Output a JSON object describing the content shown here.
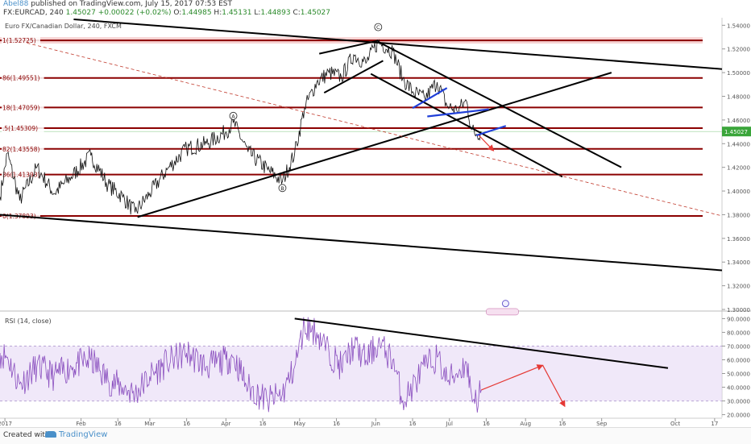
{
  "header": {
    "user": "Abel88",
    "published": " published on TradingView.com, July 15, 2017 07:53 EST",
    "symbol": "FX:EURCAD, 240",
    "price": "1.45027",
    "change": "+0.00022 (+0.02%)",
    "o_label": "O:",
    "o_val": "1.44985",
    "h_label": "H:",
    "h_val": "1.45131",
    "l_label": "L:",
    "l_val": "1.44893",
    "c_label": "C:",
    "c_val": "1.45027"
  },
  "footer": {
    "created_with": "Created with",
    "brand": "TradingView"
  },
  "chart_data": [
    {
      "type": "line",
      "title": "Euro FX/Canadian Dollar, 240, FXCM",
      "ylim": [
        1.3,
        1.545
      ],
      "x_range": [
        "2016-12-30",
        "2017-10-20"
      ],
      "y_ticks": [
        "1.54000",
        "1.52000",
        "1.50000",
        "1.48000",
        "1.46000",
        "1.44000",
        "1.42000",
        "1.40000",
        "1.38000",
        "1.36000",
        "1.34000",
        "1.32000",
        "1.30000"
      ],
      "y_tick_values": [
        1.54,
        1.52,
        1.5,
        1.48,
        1.46,
        1.44,
        1.42,
        1.4,
        1.38,
        1.36,
        1.34,
        1.32,
        1.3
      ],
      "x_ticks": [
        "2017",
        "Feb",
        "16",
        "Mar",
        "16",
        "Apr",
        "16",
        "May",
        "16",
        "Jun",
        "16",
        "Jul",
        "16",
        "Aug",
        "16",
        "Sep",
        "Oct",
        "17"
      ],
      "x_tick_dates": [
        "2017-01-01",
        "2017-02-01",
        "2017-02-16",
        "2017-03-01",
        "2017-03-16",
        "2017-04-01",
        "2017-04-16",
        "2017-05-01",
        "2017-05-16",
        "2017-06-01",
        "2017-06-16",
        "2017-07-01",
        "2017-07-16",
        "2017-08-01",
        "2017-08-16",
        "2017-09-01",
        "2017-10-01",
        "2017-10-17"
      ],
      "last_price_label": "1.45027",
      "last_price": 1.45027,
      "fib_levels": [
        {
          "label": "1(1.52725)",
          "value": 1.52725
        },
        {
          "label": "86(1.49551)",
          "value": 1.49551
        },
        {
          "label": "18(1.47059)",
          "value": 1.47059
        },
        {
          "label": ".5(1.45309)",
          "value": 1.45309
        },
        {
          "label": "82(1.43558)",
          "value": 1.43558
        },
        {
          "label": "36(1.41393)",
          "value": 1.41393
        },
        {
          "label": "0(1.37893)",
          "value": 1.37893
        }
      ],
      "waves": [
        {
          "label": "A",
          "date": "2017-04-04",
          "value": 1.458
        },
        {
          "label": "B",
          "date": "2017-04-24",
          "value": 1.408
        },
        {
          "label": "C",
          "date": "2017-06-02",
          "value": 1.533
        }
      ],
      "series": [
        {
          "values_pivots": [
            [
              "2016-12-30",
              1.395
            ],
            [
              "2017-01-02",
              1.432
            ],
            [
              "2017-01-07",
              1.392
            ],
            [
              "2017-01-14",
              1.42
            ],
            [
              "2017-01-21",
              1.398
            ],
            [
              "2017-01-28",
              1.412
            ],
            [
              "2017-02-05",
              1.43
            ],
            [
              "2017-02-12",
              1.405
            ],
            [
              "2017-02-18",
              1.395
            ],
            [
              "2017-02-23",
              1.382
            ],
            [
              "2017-03-01",
              1.398
            ],
            [
              "2017-03-08",
              1.418
            ],
            [
              "2017-03-16",
              1.436
            ],
            [
              "2017-03-24",
              1.44
            ],
            [
              "2017-04-01",
              1.45
            ],
            [
              "2017-04-04",
              1.458
            ],
            [
              "2017-04-10",
              1.433
            ],
            [
              "2017-04-18",
              1.418
            ],
            [
              "2017-04-24",
              1.408
            ],
            [
              "2017-04-29",
              1.432
            ],
            [
              "2017-05-03",
              1.47
            ],
            [
              "2017-05-08",
              1.492
            ],
            [
              "2017-05-13",
              1.5
            ],
            [
              "2017-05-18",
              1.496
            ],
            [
              "2017-05-23",
              1.515
            ],
            [
              "2017-05-28",
              1.508
            ],
            [
              "2017-06-02",
              1.526
            ],
            [
              "2017-06-08",
              1.518
            ],
            [
              "2017-06-12",
              1.495
            ],
            [
              "2017-06-16",
              1.484
            ],
            [
              "2017-06-21",
              1.478
            ],
            [
              "2017-06-26",
              1.492
            ],
            [
              "2017-06-30",
              1.472
            ],
            [
              "2017-07-04",
              1.468
            ],
            [
              "2017-07-08",
              1.476
            ],
            [
              "2017-07-10",
              1.452
            ],
            [
              "2017-07-12",
              1.448
            ],
            [
              "2017-07-14",
              1.45027
            ]
          ]
        }
      ]
    },
    {
      "type": "line",
      "title": "RSI (14, close)",
      "ylim": [
        18,
        92
      ],
      "y_ticks": [
        "90.0000",
        "80.0000",
        "70.0000",
        "60.0000",
        "50.0000",
        "40.0000",
        "30.0000",
        "20.0000"
      ],
      "y_tick_values": [
        90,
        80,
        70,
        60,
        50,
        40,
        30,
        20
      ],
      "bands": [
        30,
        70
      ],
      "series": [
        {
          "values_pivots": [
            [
              "2016-12-30",
              65
            ],
            [
              "2017-01-02",
              62
            ],
            [
              "2017-01-07",
              42
            ],
            [
              "2017-01-14",
              55
            ],
            [
              "2017-01-21",
              48
            ],
            [
              "2017-01-28",
              55
            ],
            [
              "2017-02-05",
              60
            ],
            [
              "2017-02-12",
              45
            ],
            [
              "2017-02-18",
              40
            ],
            [
              "2017-02-23",
              35
            ],
            [
              "2017-03-01",
              48
            ],
            [
              "2017-03-08",
              58
            ],
            [
              "2017-03-16",
              65
            ],
            [
              "2017-03-24",
              55
            ],
            [
              "2017-04-01",
              60
            ],
            [
              "2017-04-04",
              62
            ],
            [
              "2017-04-10",
              40
            ],
            [
              "2017-04-18",
              30
            ],
            [
              "2017-04-24",
              35
            ],
            [
              "2017-04-29",
              55
            ],
            [
              "2017-05-03",
              85
            ],
            [
              "2017-05-08",
              80
            ],
            [
              "2017-05-13",
              65
            ],
            [
              "2017-05-18",
              55
            ],
            [
              "2017-05-23",
              70
            ],
            [
              "2017-05-28",
              60
            ],
            [
              "2017-06-02",
              72
            ],
            [
              "2017-06-08",
              60
            ],
            [
              "2017-06-12",
              30
            ],
            [
              "2017-06-16",
              40
            ],
            [
              "2017-06-21",
              55
            ],
            [
              "2017-06-26",
              62
            ],
            [
              "2017-06-30",
              45
            ],
            [
              "2017-07-04",
              50
            ],
            [
              "2017-07-08",
              58
            ],
            [
              "2017-07-10",
              35
            ],
            [
              "2017-07-12",
              30
            ],
            [
              "2017-07-14",
              38
            ]
          ]
        }
      ]
    }
  ]
}
